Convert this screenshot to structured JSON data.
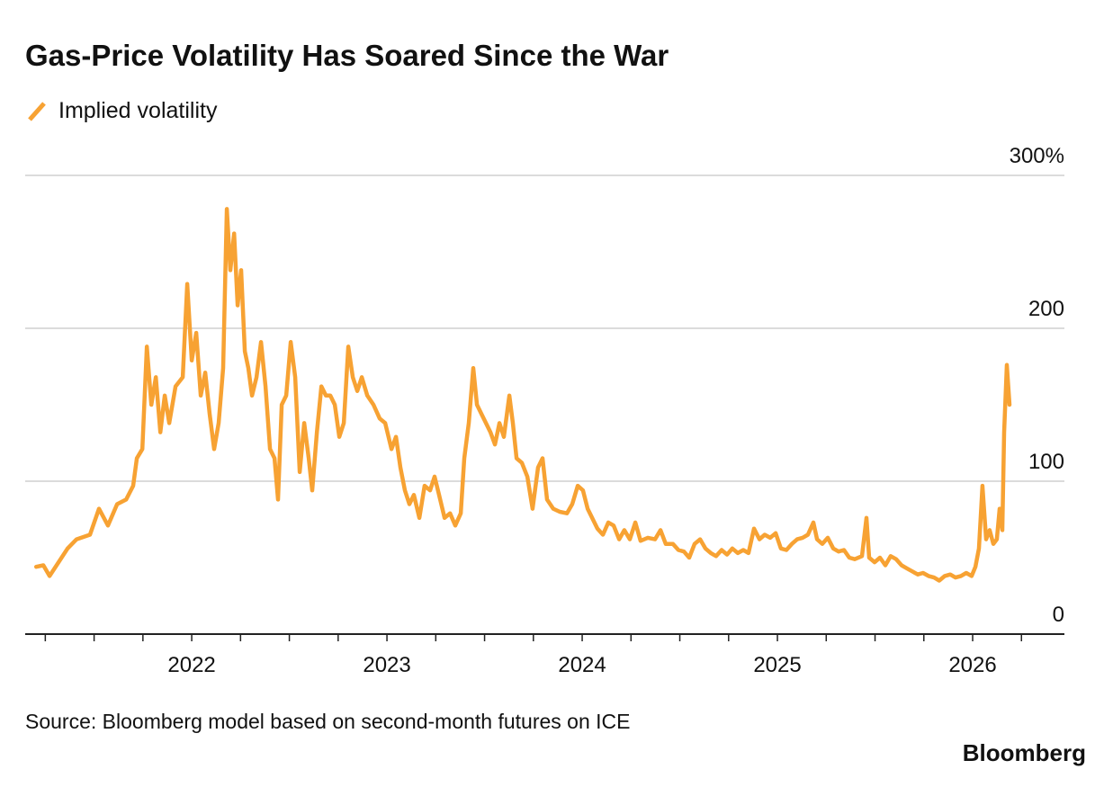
{
  "chart_data": {
    "type": "line",
    "title": "Gas-Price Volatility Has Soared Since the War",
    "source": "Source: Bloomberg model based on second-month futures on ICE",
    "brand": "Bloomberg",
    "legend": "top-left",
    "grid": true,
    "xlim": [
      2021.147,
      2026.47
    ],
    "xticks": [
      2022,
      2023,
      2024,
      2025,
      2026
    ],
    "xminorticks": [
      2021.25,
      2021.5,
      2021.75,
      2022.25,
      2022.5,
      2022.75,
      2023.25,
      2023.5,
      2023.75,
      2024.25,
      2024.5,
      2024.75,
      2025.25,
      2025.5,
      2025.75,
      2026.25
    ],
    "ylim": [
      0,
      300
    ],
    "yticks": [
      0,
      100,
      200,
      {
        "value": 300,
        "label": "300%"
      }
    ],
    "x": [
      2021.203,
      2021.24,
      2021.272,
      2021.318,
      2021.364,
      2021.41,
      2021.479,
      2021.525,
      2021.571,
      2021.618,
      2021.664,
      2021.7,
      2021.719,
      2021.747,
      2021.77,
      2021.793,
      2021.816,
      2021.839,
      2021.862,
      2021.885,
      2021.917,
      2021.954,
      2021.977,
      2022.0,
      2022.023,
      2022.046,
      2022.069,
      2022.092,
      2022.115,
      2022.138,
      2022.161,
      2022.18,
      2022.198,
      2022.217,
      2022.235,
      2022.253,
      2022.272,
      2022.29,
      2022.309,
      2022.332,
      2022.355,
      2022.378,
      2022.401,
      2022.424,
      2022.442,
      2022.461,
      2022.484,
      2022.507,
      2022.53,
      2022.553,
      2022.576,
      2022.599,
      2022.617,
      2022.641,
      2022.664,
      2022.687,
      2022.71,
      2022.733,
      2022.756,
      2022.779,
      2022.802,
      2022.825,
      2022.848,
      2022.871,
      2022.899,
      2022.931,
      2022.963,
      2022.991,
      2023.023,
      2023.046,
      2023.069,
      2023.092,
      2023.115,
      2023.138,
      2023.166,
      2023.193,
      2023.221,
      2023.244,
      2023.267,
      2023.295,
      2023.323,
      2023.35,
      2023.378,
      2023.396,
      2023.419,
      2023.442,
      2023.461,
      2023.484,
      2023.507,
      2023.53,
      2023.553,
      2023.576,
      2023.599,
      2023.627,
      2023.645,
      2023.664,
      2023.691,
      2023.719,
      2023.746,
      2023.774,
      2023.797,
      2023.82,
      2023.852,
      2023.885,
      2023.922,
      2023.949,
      2023.977,
      2024.004,
      2024.028,
      2024.051,
      2024.078,
      2024.106,
      2024.134,
      2024.161,
      2024.189,
      2024.216,
      2024.244,
      2024.272,
      2024.299,
      2024.336,
      2024.373,
      2024.401,
      2024.428,
      2024.465,
      2024.493,
      2024.521,
      2024.548,
      2024.576,
      2024.604,
      2024.631,
      2024.659,
      2024.686,
      2024.714,
      2024.742,
      2024.769,
      2024.797,
      2024.825,
      2024.852,
      2024.88,
      2024.908,
      2024.935,
      2024.963,
      2024.991,
      2025.018,
      2025.046,
      2025.074,
      2025.101,
      2025.129,
      2025.156,
      2025.184,
      2025.203,
      2025.23,
      2025.258,
      2025.286,
      2025.313,
      2025.341,
      2025.368,
      2025.396,
      2025.433,
      2025.456,
      2025.47,
      2025.498,
      2025.525,
      2025.553,
      2025.58,
      2025.608,
      2025.636,
      2025.663,
      2025.691,
      2025.719,
      2025.746,
      2025.774,
      2025.802,
      2025.829,
      2025.857,
      2025.885,
      2025.912,
      2025.94,
      2025.967,
      2025.995,
      2026.014,
      2026.032,
      2026.05,
      2026.069,
      2026.087,
      2026.106,
      2026.124,
      2026.138,
      2026.152,
      2026.161,
      2026.175,
      2026.189
    ],
    "series": [
      {
        "name": "Implied volatility",
        "color": "#f7a233",
        "values": [
          44,
          45,
          38,
          47,
          56,
          62,
          65,
          82,
          71,
          85,
          88,
          97,
          115,
          121,
          188,
          150,
          168,
          132,
          156,
          138,
          162,
          168,
          229,
          179,
          197,
          156,
          171,
          144,
          121,
          138,
          174,
          278,
          238,
          262,
          215,
          238,
          185,
          174,
          156,
          168,
          191,
          162,
          121,
          115,
          88,
          150,
          156,
          191,
          168,
          106,
          138,
          115,
          94,
          132,
          162,
          156,
          156,
          150,
          129,
          138,
          188,
          168,
          159,
          168,
          156,
          150,
          141,
          138,
          121,
          129,
          109,
          94,
          85,
          91,
          76,
          97,
          94,
          103,
          91,
          76,
          79,
          71,
          79,
          115,
          138,
          174,
          150,
          144,
          138,
          132,
          124,
          138,
          129,
          156,
          138,
          115,
          112,
          103,
          82,
          109,
          115,
          88,
          82,
          80,
          79,
          85,
          97,
          94,
          82,
          76,
          69,
          65,
          73,
          71,
          62,
          68,
          62,
          73,
          61,
          63,
          62,
          68,
          59,
          59,
          55,
          54,
          50,
          59,
          62,
          56,
          53,
          51,
          55,
          52,
          56,
          53,
          55,
          53,
          69,
          62,
          65,
          63,
          66,
          56,
          55,
          59,
          62,
          63,
          65,
          73,
          62,
          59,
          63,
          56,
          54,
          55,
          50,
          49,
          51,
          76,
          50,
          47,
          50,
          45,
          51,
          49,
          45,
          43,
          41,
          39,
          40,
          38,
          37,
          35,
          38,
          39,
          37,
          38,
          40,
          38,
          44,
          56,
          97,
          62,
          68,
          59,
          62,
          82,
          68,
          132,
          176,
          150
        ]
      }
    ]
  }
}
